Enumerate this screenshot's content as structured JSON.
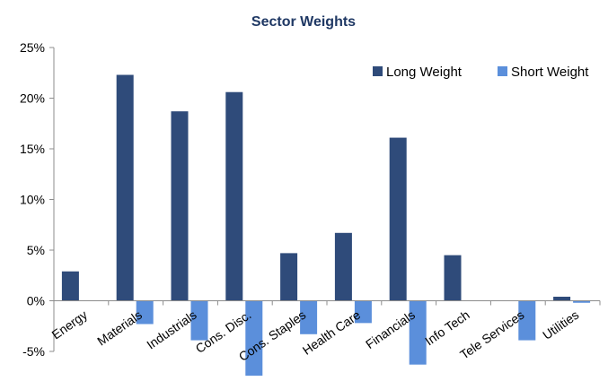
{
  "chart_data": {
    "type": "bar",
    "title": "Sector Weights",
    "xlabel": "",
    "ylabel": "",
    "categories": [
      "Energy",
      "Materials",
      "Industrials",
      "Cons. Disc.",
      "Cons. Staples",
      "Health Care",
      "Financials",
      "Info Tech",
      "Tele Services",
      "Utilities"
    ],
    "series": [
      {
        "name": "Long Weight",
        "color": "#2F4B7A",
        "values": [
          2.9,
          22.3,
          18.7,
          20.6,
          4.7,
          6.7,
          16.1,
          4.5,
          0,
          0.4
        ]
      },
      {
        "name": "Short Weight",
        "color": "#5B8FDB",
        "values": [
          0,
          -2.3,
          -3.9,
          -7.4,
          -3.3,
          -2.2,
          -6.3,
          0,
          -3.9,
          -0.2
        ]
      }
    ],
    "ylim": [
      -5,
      25
    ],
    "y_ticks": [
      -5,
      0,
      5,
      10,
      15,
      20,
      25
    ],
    "y_tick_labels": [
      "-5%",
      "0%",
      "5%",
      "10%",
      "15%",
      "20%",
      "25%"
    ],
    "legend_position": "top-right",
    "grid": false,
    "title_color": "#1F3864"
  }
}
